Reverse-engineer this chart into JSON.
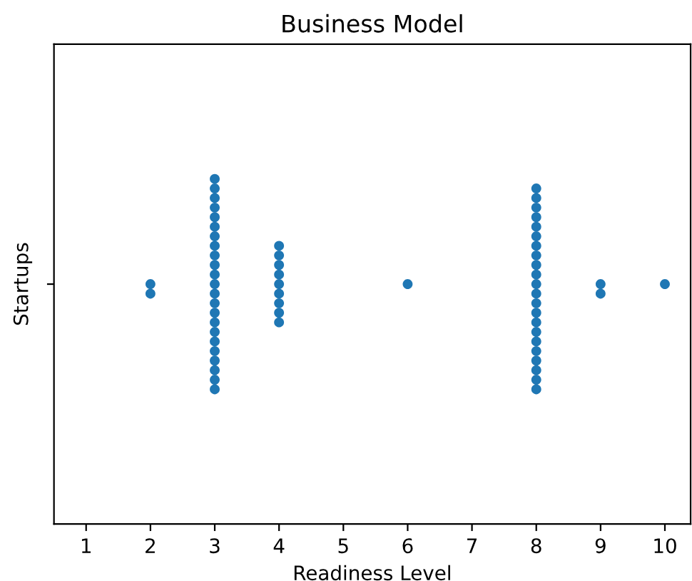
{
  "chart_data": {
    "type": "scatter",
    "title": "Business Model",
    "xlabel": "Readiness Level",
    "ylabel": "Startups",
    "orientation": "horizontal",
    "categories": [
      null
    ],
    "series": [
      {
        "color": "#1f77b4",
        "values": [
          2
        ]
      },
      {
        "color": "#1f77b4",
        "values": [
          2
        ]
      },
      {
        "color": "#1f77b4",
        "values": [
          3
        ]
      },
      {
        "color": "#1f77b4",
        "values": [
          3
        ]
      },
      {
        "color": "#1f77b4",
        "values": [
          3
        ]
      },
      {
        "color": "#1f77b4",
        "values": [
          3
        ]
      },
      {
        "color": "#1f77b4",
        "values": [
          3
        ]
      },
      {
        "color": "#1f77b4",
        "values": [
          3
        ]
      },
      {
        "color": "#1f77b4",
        "values": [
          3
        ]
      },
      {
        "color": "#1f77b4",
        "values": [
          3
        ]
      },
      {
        "color": "#1f77b4",
        "values": [
          3
        ]
      },
      {
        "color": "#1f77b4",
        "values": [
          3
        ]
      },
      {
        "color": "#1f77b4",
        "values": [
          3
        ]
      },
      {
        "color": "#1f77b4",
        "values": [
          3
        ]
      },
      {
        "color": "#1f77b4",
        "values": [
          3
        ]
      },
      {
        "color": "#1f77b4",
        "values": [
          3
        ]
      },
      {
        "color": "#1f77b4",
        "values": [
          3
        ]
      },
      {
        "color": "#1f77b4",
        "values": [
          3
        ]
      },
      {
        "color": "#1f77b4",
        "values": [
          3
        ]
      },
      {
        "color": "#1f77b4",
        "values": [
          3
        ]
      },
      {
        "color": "#1f77b4",
        "values": [
          3
        ]
      },
      {
        "color": "#1f77b4",
        "values": [
          3
        ]
      },
      {
        "color": "#1f77b4",
        "values": [
          3
        ]
      },
      {
        "color": "#1f77b4",
        "values": [
          3
        ]
      },
      {
        "color": "#1f77b4",
        "values": [
          3
        ]
      },
      {
        "color": "#1f77b4",
        "values": [
          4
        ]
      },
      {
        "color": "#1f77b4",
        "values": [
          4
        ]
      },
      {
        "color": "#1f77b4",
        "values": [
          4
        ]
      },
      {
        "color": "#1f77b4",
        "values": [
          4
        ]
      },
      {
        "color": "#1f77b4",
        "values": [
          4
        ]
      },
      {
        "color": "#1f77b4",
        "values": [
          4
        ]
      },
      {
        "color": "#1f77b4",
        "values": [
          4
        ]
      },
      {
        "color": "#1f77b4",
        "values": [
          4
        ]
      },
      {
        "color": "#1f77b4",
        "values": [
          4
        ]
      },
      {
        "color": "#1f77b4",
        "values": [
          6
        ]
      },
      {
        "color": "#1f77b4",
        "values": [
          8
        ]
      },
      {
        "color": "#1f77b4",
        "values": [
          8
        ]
      },
      {
        "color": "#1f77b4",
        "values": [
          8
        ]
      },
      {
        "color": "#1f77b4",
        "values": [
          8
        ]
      },
      {
        "color": "#1f77b4",
        "values": [
          8
        ]
      },
      {
        "color": "#1f77b4",
        "values": [
          8
        ]
      },
      {
        "color": "#1f77b4",
        "values": [
          8
        ]
      },
      {
        "color": "#1f77b4",
        "values": [
          8
        ]
      },
      {
        "color": "#1f77b4",
        "values": [
          8
        ]
      },
      {
        "color": "#1f77b4",
        "values": [
          8
        ]
      },
      {
        "color": "#1f77b4",
        "values": [
          8
        ]
      },
      {
        "color": "#1f77b4",
        "values": [
          8
        ]
      },
      {
        "color": "#1f77b4",
        "values": [
          8
        ]
      },
      {
        "color": "#1f77b4",
        "values": [
          8
        ]
      },
      {
        "color": "#1f77b4",
        "values": [
          8
        ]
      },
      {
        "color": "#1f77b4",
        "values": [
          8
        ]
      },
      {
        "color": "#1f77b4",
        "values": [
          8
        ]
      },
      {
        "color": "#1f77b4",
        "values": [
          8
        ]
      },
      {
        "color": "#1f77b4",
        "values": [
          8
        ]
      },
      {
        "color": "#1f77b4",
        "values": [
          8
        ]
      },
      {
        "color": "#1f77b4",
        "values": [
          8
        ]
      },
      {
        "color": "#1f77b4",
        "values": [
          8
        ]
      },
      {
        "color": "#1f77b4",
        "values": [
          9
        ]
      },
      {
        "color": "#1f77b4",
        "values": [
          9
        ]
      },
      {
        "color": "#1f77b4",
        "values": [
          10
        ]
      }
    ],
    "xlim": [
      0.5,
      10.4
    ],
    "xticks": [
      1,
      2,
      3,
      4,
      5,
      6,
      7,
      8,
      9,
      10
    ],
    "marker": "circle",
    "grid": false
  }
}
